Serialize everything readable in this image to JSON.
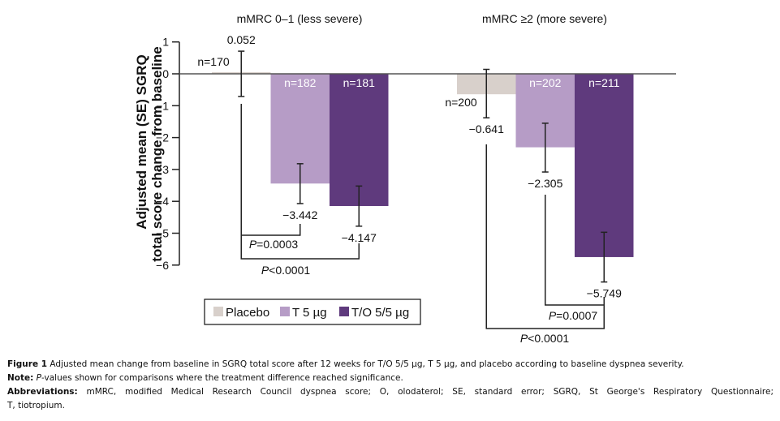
{
  "chart_data": {
    "type": "bar",
    "ylabel_line1": "Adjusted mean (SE) SGRQ",
    "ylabel_line2": "total score change from baseline",
    "ylim": [
      -6,
      1
    ],
    "yticks": [
      1,
      0,
      -1,
      -2,
      -3,
      -4,
      -5,
      -6
    ],
    "ytick_labels": [
      "1",
      "0",
      "−1",
      "−2",
      "−3",
      "−4",
      "−5",
      "−6"
    ],
    "groups": [
      {
        "title": "mMRC 0–1 (less severe)",
        "bars": [
          {
            "series": "Placebo",
            "value": 0.052,
            "value_label": "0.052",
            "se_upper": 0.71,
            "se_lower": -0.71,
            "n_label": "n=170"
          },
          {
            "series": "T 5 µg",
            "value": -3.442,
            "value_label": "−3.442",
            "se_upper": -2.82,
            "se_lower": -4.07,
            "n_label": "n=182"
          },
          {
            "series": "T/O 5/5 µg",
            "value": -4.147,
            "value_label": "−4.147",
            "se_upper": -3.52,
            "se_lower": -4.78,
            "n_label": "n=181"
          }
        ],
        "comparisons": [
          {
            "label_italic": "P",
            "label_rest": "=0.0003",
            "from": 0,
            "to": 1
          },
          {
            "label_italic": "P",
            "label_rest": "<0.0001",
            "from": 0,
            "to": 2
          }
        ]
      },
      {
        "title": "mMRC ≥2 (more severe)",
        "bars": [
          {
            "series": "Placebo",
            "value": -0.641,
            "value_label": "−0.641",
            "se_upper": 0.14,
            "se_lower": -1.38,
            "n_label": "n=200"
          },
          {
            "series": "T 5 µg",
            "value": -2.305,
            "value_label": "−2.305",
            "se_upper": -1.55,
            "se_lower": -3.08,
            "n_label": "n=202"
          },
          {
            "series": "T/O 5/5 µg",
            "value": -5.749,
            "value_label": "−5.749",
            "se_upper": -4.97,
            "se_lower": -6.53,
            "n_label": "n=211"
          }
        ],
        "comparisons": [
          {
            "label_italic": "P",
            "label_rest": "=0.0007",
            "from": 1,
            "to": 2
          },
          {
            "label_italic": "P",
            "label_rest": "<0.0001",
            "from": 0,
            "to": 2
          }
        ]
      }
    ],
    "legend": {
      "position": "bottom-left",
      "entries": [
        {
          "name": "Placebo",
          "color": "#d8d0cb"
        },
        {
          "name": "T 5 µg",
          "color": "#b69cc6"
        },
        {
          "name": "T/O 5/5 µg",
          "color": "#5f3a7d"
        }
      ]
    },
    "grid": false
  },
  "caption": {
    "figure_label": "Figure 1",
    "figure_text": " Adjusted mean change from baseline in SGRQ total score after 12 weeks for T/O 5/5 µg, T 5 µg, and placebo according to baseline dyspnea severity.",
    "note_label": "Note:",
    "note_italic": " P",
    "note_text": "-values shown for comparisons where the treatment difference reached significance.",
    "abbr_label": "Abbreviations:",
    "abbr_text": " mMRC, modified Medical Research Council dyspnea score; O, olodaterol; SE, standard error; SGRQ, St George's Respiratory Questionnaire;",
    "abbr_text2": "T, tiotropium."
  }
}
